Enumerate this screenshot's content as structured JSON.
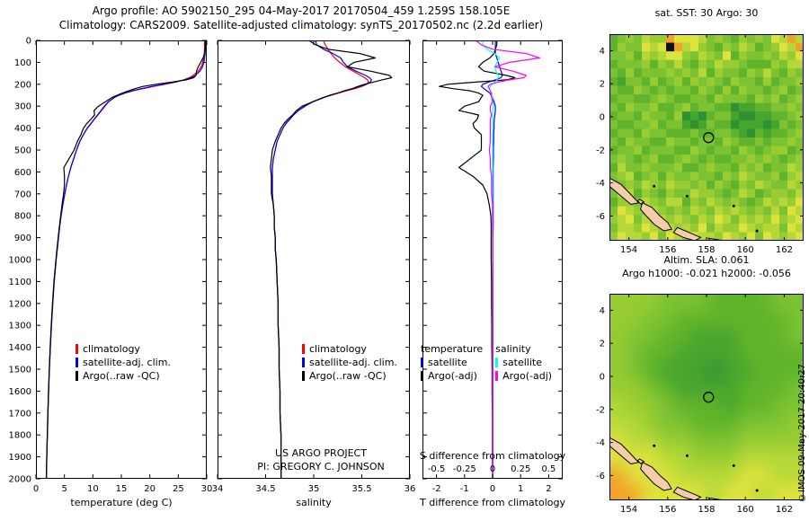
{
  "header": {
    "line1": "Argo profile: AO 5902150_295 04-May-2017 20170504_459 1.259S 158.105E",
    "line2": "Climatology: CARS2009. Satellite-adjusted climatology: synTS_20170502.nc (2.2d earlier)"
  },
  "credit": "©IMOS 09-May-2017 20:40:27",
  "geo": {
    "marker": {
      "lon": 158.105,
      "lat": -1.259
    },
    "land_color": "#f6cdab",
    "land": [
      {
        "name": "new-ireland-tip",
        "pts": [
          [
            153.0,
            -3.7
          ],
          [
            153.6,
            -4.1
          ],
          [
            154.1,
            -4.7
          ],
          [
            154.5,
            -5.2
          ],
          [
            154.1,
            -5.3
          ],
          [
            153.5,
            -4.7
          ],
          [
            153.0,
            -4.2
          ]
        ]
      },
      {
        "name": "buka",
        "pts": [
          [
            154.55,
            -5.0
          ],
          [
            154.78,
            -5.15
          ],
          [
            154.62,
            -5.28
          ],
          [
            154.45,
            -5.1
          ]
        ]
      },
      {
        "name": "bougainville",
        "pts": [
          [
            154.7,
            -5.2
          ],
          [
            155.2,
            -5.5
          ],
          [
            155.6,
            -6.0
          ],
          [
            156.0,
            -6.4
          ],
          [
            156.2,
            -6.8
          ],
          [
            155.8,
            -6.9
          ],
          [
            155.3,
            -6.5
          ],
          [
            154.9,
            -6.0
          ],
          [
            154.6,
            -5.6
          ]
        ]
      },
      {
        "name": "choiseul",
        "pts": [
          [
            156.5,
            -6.7
          ],
          [
            157.1,
            -7.0
          ],
          [
            157.7,
            -7.3
          ],
          [
            157.4,
            -7.5
          ],
          [
            156.8,
            -7.3
          ],
          [
            156.3,
            -7.0
          ]
        ]
      },
      {
        "name": "isabel-tip",
        "pts": [
          [
            158.1,
            -7.35
          ],
          [
            158.9,
            -7.5
          ],
          [
            158.2,
            -7.5
          ]
        ]
      }
    ],
    "dots": [
      [
        157.0,
        -4.8
      ],
      [
        159.4,
        -5.4
      ],
      [
        155.3,
        -4.2
      ],
      [
        160.6,
        -6.9
      ]
    ]
  },
  "chart_data": [
    {
      "id": "temperature-profile-panel",
      "type": "line",
      "xlabel": "temperature (deg C)",
      "xlim": [
        0,
        30
      ],
      "xticks": [
        0,
        5,
        10,
        15,
        20,
        25,
        30
      ],
      "ylim": [
        0,
        2000
      ],
      "yticks": [
        0,
        100,
        200,
        300,
        400,
        500,
        600,
        700,
        800,
        900,
        1000,
        1100,
        1200,
        1300,
        1400,
        1500,
        1600,
        1700,
        1800,
        1900,
        2000
      ],
      "depths": [
        0,
        20,
        40,
        60,
        80,
        100,
        120,
        140,
        160,
        170,
        180,
        190,
        200,
        210,
        220,
        230,
        240,
        250,
        260,
        280,
        300,
        320,
        340,
        360,
        380,
        400,
        430,
        460,
        500,
        540,
        580,
        620,
        660,
        700,
        750,
        800,
        850,
        900,
        950,
        1000,
        1100,
        1200,
        1300,
        1400,
        1500,
        1600,
        1700,
        1800,
        1900,
        2000
      ],
      "series": [
        {
          "name": "climatology",
          "color": "#ff0000",
          "values": [
            29.6,
            29.6,
            29.6,
            29.55,
            29.45,
            29.3,
            29.0,
            28.5,
            27.6,
            26.9,
            25.9,
            24.5,
            22.7,
            20.7,
            18.8,
            17.1,
            15.7,
            14.6,
            13.8,
            12.7,
            12.0,
            11.4,
            10.8,
            10.2,
            9.6,
            9.0,
            8.3,
            7.7,
            7.1,
            6.6,
            6.1,
            5.7,
            5.35,
            5.05,
            4.7,
            4.4,
            4.15,
            3.95,
            3.75,
            3.55,
            3.2,
            2.95,
            2.72,
            2.52,
            2.36,
            2.22,
            2.1,
            2.0,
            1.9,
            1.82
          ]
        },
        {
          "name": "satellite-adj. clim.",
          "color": "#0000ff",
          "values": [
            29.75,
            29.75,
            29.75,
            29.7,
            29.6,
            29.5,
            29.25,
            28.8,
            28.0,
            27.25,
            26.05,
            24.4,
            22.4,
            20.35,
            18.5,
            16.9,
            15.6,
            14.55,
            13.8,
            12.75,
            12.1,
            11.5,
            10.88,
            10.26,
            9.65,
            9.05,
            8.34,
            7.74,
            7.13,
            6.63,
            6.12,
            5.72,
            5.37,
            5.07,
            4.72,
            4.42,
            4.17,
            3.96,
            3.76,
            3.56,
            3.21,
            2.96,
            2.73,
            2.53,
            2.37,
            2.23,
            2.11,
            2.01,
            1.91,
            1.83
          ]
        },
        {
          "name": "Argo(..raw -QC)",
          "color": "#000000",
          "values": [
            29.75,
            29.75,
            29.7,
            29.6,
            29.35,
            28.95,
            28.5,
            28.2,
            28.1,
            27.7,
            26.4,
            23.9,
            21.1,
            18.8,
            17.4,
            16.3,
            15.2,
            14.25,
            13.4,
            12.2,
            11.0,
            10.2,
            10.3,
            9.65,
            8.9,
            8.35,
            7.9,
            7.3,
            6.7,
            5.8,
            4.9,
            5.0,
            5.0,
            4.85,
            4.58,
            4.34,
            4.1,
            3.9,
            3.7,
            3.5,
            3.16,
            2.91,
            2.69,
            2.49,
            2.34,
            2.2,
            2.09,
            1.99,
            1.89,
            1.82
          ]
        }
      ]
    },
    {
      "id": "salinity-profile-panel",
      "type": "line",
      "xlabel": "salinity",
      "xlim": [
        34,
        36
      ],
      "xticks": [
        34,
        34.5,
        35,
        35.5,
        36
      ],
      "xtick_labels": [
        "34",
        "34.5",
        "35",
        "35.5",
        "36"
      ],
      "ylim": [
        0,
        2000
      ],
      "annotations": [
        "US ARGO PROJECT",
        "PI: GREGORY C. JOHNSON"
      ],
      "depths": [
        0,
        20,
        40,
        60,
        80,
        100,
        120,
        140,
        160,
        170,
        180,
        190,
        200,
        210,
        220,
        230,
        240,
        250,
        260,
        280,
        300,
        320,
        340,
        360,
        380,
        400,
        430,
        460,
        500,
        540,
        580,
        620,
        660,
        700,
        750,
        800,
        850,
        900,
        950,
        1000,
        1100,
        1200,
        1300,
        1400,
        1500,
        1600,
        1700,
        1800,
        1900,
        2000
      ],
      "series": [
        {
          "name": "climatology",
          "color": "#ff0000",
          "values": [
            35.1,
            35.12,
            35.15,
            35.18,
            35.22,
            35.27,
            35.33,
            35.41,
            35.49,
            35.53,
            35.56,
            35.57,
            35.55,
            35.5,
            35.43,
            35.34,
            35.26,
            35.18,
            35.11,
            34.99,
            34.9,
            34.84,
            34.79,
            34.75,
            34.71,
            34.68,
            34.65,
            34.62,
            34.6,
            34.58,
            34.57,
            34.57,
            34.57,
            34.57,
            34.58,
            34.59,
            34.59,
            34.6,
            34.6,
            34.61,
            34.62,
            34.63,
            34.63,
            34.64,
            34.64,
            34.65,
            34.65,
            34.66,
            34.66,
            34.66
          ]
        },
        {
          "name": "satellite-adj. clim.",
          "color": "#0000ff",
          "values": [
            35.02,
            35.03,
            35.1,
            35.2,
            35.28,
            35.31,
            35.35,
            35.44,
            35.54,
            35.58,
            35.6,
            35.59,
            35.55,
            35.48,
            35.4,
            35.32,
            35.25,
            35.17,
            35.11,
            34.99,
            34.91,
            34.84,
            34.79,
            34.75,
            34.71,
            34.68,
            34.65,
            34.62,
            34.6,
            34.58,
            34.57,
            34.57,
            34.57,
            34.57,
            34.58,
            34.59,
            34.59,
            34.6,
            34.6,
            34.61,
            34.62,
            34.63,
            34.63,
            34.64,
            34.64,
            34.65,
            34.65,
            34.66,
            34.66,
            34.66
          ]
        },
        {
          "name": "Argo(..raw -QC)",
          "color": "#000000",
          "values": [
            34.95,
            35.02,
            35.15,
            35.48,
            35.64,
            35.42,
            35.35,
            35.59,
            35.79,
            35.81,
            35.71,
            35.62,
            35.53,
            35.46,
            35.4,
            35.32,
            35.25,
            35.17,
            35.1,
            34.99,
            34.88,
            34.82,
            34.78,
            34.73,
            34.69,
            34.66,
            34.63,
            34.6,
            34.57,
            34.56,
            34.55,
            34.56,
            34.56,
            34.56,
            34.58,
            34.59,
            34.59,
            34.6,
            34.6,
            34.61,
            34.62,
            34.63,
            34.63,
            34.64,
            34.64,
            34.65,
            34.65,
            34.66,
            34.66,
            34.66
          ]
        }
      ]
    },
    {
      "id": "difference-panel",
      "type": "line",
      "xlabel": "T difference from climatology",
      "s_axis_label": "S difference from climatology",
      "t_header": "temperature",
      "s_header": "salinity",
      "xlim": [
        -2.5,
        2.5
      ],
      "xticks": [
        -2,
        -1,
        0,
        1,
        2
      ],
      "s_tick_labels": [
        "-0.5",
        "-0.25",
        "0",
        "0.25",
        "0.5"
      ],
      "ylim": [
        0,
        2000
      ],
      "depths": [
        0,
        20,
        40,
        60,
        80,
        100,
        120,
        140,
        160,
        170,
        180,
        190,
        200,
        210,
        220,
        230,
        240,
        250,
        260,
        280,
        300,
        320,
        340,
        360,
        380,
        400,
        430,
        460,
        500,
        540,
        580,
        620,
        660,
        700,
        750,
        800,
        850,
        900,
        950,
        1000,
        1100,
        1200,
        1300,
        1400,
        1500,
        1600,
        1700,
        1800,
        1900,
        2000
      ],
      "series": [
        {
          "name": "satellite",
          "group": "temperature",
          "color": "#0000ff",
          "scale": 1,
          "values": [
            0.1,
            0.1,
            0.1,
            0.1,
            0.15,
            0.2,
            0.25,
            0.3,
            0.35,
            0.3,
            0.1,
            -0.15,
            -0.35,
            -0.4,
            -0.3,
            -0.2,
            -0.1,
            -0.05,
            0.0,
            0.05,
            0.1,
            0.1,
            0.08,
            0.06,
            0.05,
            0.05,
            0.04,
            0.04,
            0.03,
            0.03,
            0.02,
            0.02,
            0.02,
            0.02,
            0.02,
            0.02,
            0.02,
            0.01,
            0.01,
            0.01,
            0.01,
            0.01,
            0.01,
            0.01,
            0.01,
            0.01,
            0.01,
            0.01,
            0.01,
            0.01
          ]
        },
        {
          "name": "Argo(-adj)",
          "group": "temperature",
          "color": "#000000",
          "scale": 1,
          "values": [
            0.15,
            0.15,
            0.1,
            0.05,
            -0.1,
            -0.35,
            -0.5,
            -0.3,
            0.5,
            0.8,
            0.5,
            -0.6,
            -1.6,
            -1.9,
            -1.4,
            -0.8,
            -0.5,
            -0.35,
            -0.4,
            -0.5,
            -1.0,
            -1.2,
            -0.5,
            -0.55,
            -0.7,
            -0.65,
            -0.4,
            -0.4,
            -0.4,
            -0.8,
            -1.2,
            -0.7,
            -0.35,
            -0.2,
            -0.12,
            -0.06,
            -0.05,
            -0.05,
            -0.05,
            -0.05,
            -0.04,
            -0.04,
            -0.03,
            -0.03,
            -0.02,
            -0.02,
            -0.01,
            -0.01,
            -0.01,
            0.0
          ]
        },
        {
          "name": "satellite",
          "group": "salinity",
          "color": "#00ffff",
          "scale": 4,
          "values": [
            -0.08,
            -0.09,
            -0.05,
            0.02,
            0.06,
            0.04,
            0.02,
            0.03,
            0.05,
            0.05,
            0.04,
            0.02,
            0.0,
            -0.02,
            -0.03,
            -0.02,
            -0.01,
            -0.01,
            0.0,
            0.0,
            0.01,
            0.0,
            0.0,
            0.0,
            0.0,
            0.0,
            0.0,
            0.0,
            0.0,
            0.0,
            0.0,
            0.0,
            0.0,
            0.0,
            0.0,
            0.0,
            0.0,
            0.0,
            0.0,
            0.0,
            0.0,
            0.0,
            0.0,
            0.0,
            0.0,
            0.0,
            0.0,
            0.0,
            0.0,
            0.0
          ]
        },
        {
          "name": "Argo(-adj)",
          "group": "salinity",
          "color": "#ff00ff",
          "scale": 4,
          "values": [
            -0.15,
            -0.1,
            0.0,
            0.3,
            0.42,
            0.15,
            0.02,
            0.18,
            0.3,
            0.28,
            0.15,
            0.05,
            -0.02,
            -0.04,
            -0.03,
            -0.02,
            -0.01,
            -0.01,
            -0.01,
            0.0,
            -0.02,
            -0.02,
            -0.01,
            -0.02,
            -0.02,
            -0.02,
            -0.02,
            -0.02,
            -0.03,
            -0.02,
            -0.02,
            -0.01,
            -0.01,
            -0.01,
            0.0,
            0.0,
            0.0,
            0.0,
            0.0,
            0.0,
            0.0,
            0.0,
            0.0,
            0.0,
            0.0,
            0.0,
            0.0,
            0.0,
            0.0,
            0.0
          ]
        }
      ]
    },
    {
      "id": "sst-map",
      "type": "heatmap",
      "title": "sat. SST: 30 Argo: 30",
      "lon_range": [
        153,
        163
      ],
      "lat_range": [
        5,
        -7.5
      ],
      "xticks": [
        154,
        156,
        158,
        160,
        162
      ],
      "yticks": [
        4,
        2,
        0,
        -2,
        -4,
        -6
      ],
      "smooth": false,
      "palette": [
        "#101010",
        "#1e7d32",
        "#2f9232",
        "#46a52e",
        "#60b42c",
        "#7cc232",
        "#97cc33",
        "#b5d838",
        "#dde33c",
        "#f2a22b"
      ],
      "grid": [
        "456576698887565465658797",
        "465587809786546576456879",
        "556476788657658465565768",
        "455564657546576654446577",
        "546455565657465546575465",
        "435546456465654655464556",
        "544654545546546465545645",
        "455445654455465554656456",
        "546556445645544233445565",
        "455465546232455322334456",
        "544556455323544233323545",
        "455465544454455432434456",
        "546554465545546544545565",
        "455645554465455465456645",
        "565456445654544556565456",
        "475565556445655465645576",
        "567456465565546576556467",
        "456576576656465465765576",
        "577465465576654576456657",
        "466576577465765654576768",
        "587657656576576765657587",
        "678576767657687576768678",
        "577687676768576687677587",
        "687768587687768768587678"
      ]
    },
    {
      "id": "sla-map",
      "type": "heatmap",
      "title": "Altim. SLA: 0.061",
      "subtitle": "Argo h1000: -0.021 h2000: -0.056",
      "lon_range": [
        153,
        163
      ],
      "lat_range": [
        5,
        -7.5
      ],
      "xticks": [
        154,
        156,
        158,
        160,
        162
      ],
      "yticks": [
        4,
        2,
        0,
        -2,
        -4,
        -6
      ],
      "smooth": true,
      "palette": [
        "#101010",
        "#1e7d32",
        "#2f9232",
        "#46a52e",
        "#60b42c",
        "#7cc232",
        "#97cc33",
        "#b5d838",
        "#dde33c",
        "#f2a22b"
      ],
      "grid": [
        "666555444455",
        "665544444445",
        "655443334445",
        "654433334444",
        "654333233444",
        "665433334445",
        "766544434455",
        "776554445556",
        "877665556666",
        "888776667777",
        "988877778877",
        "998888788788"
      ]
    }
  ]
}
